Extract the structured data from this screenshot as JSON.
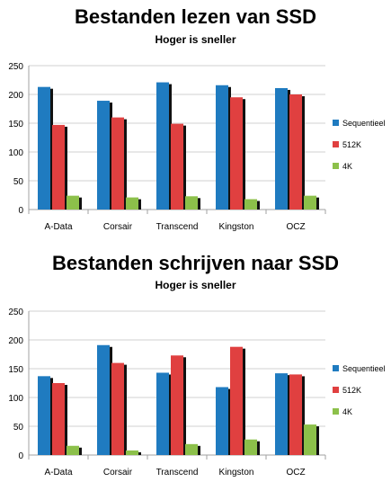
{
  "chart_data": [
    {
      "type": "bar",
      "title": "Bestanden lezen van SSD",
      "subtitle": "Hoger is sneller",
      "categories": [
        "A-Data",
        "Corsair",
        "Transcend",
        "Kingston",
        "OCZ"
      ],
      "series": [
        {
          "name": "Sequentieel",
          "color": "#1f7bc0",
          "values": [
            213,
            189,
            221,
            216,
            211
          ]
        },
        {
          "name": "512K",
          "color": "#e04040",
          "values": [
            147,
            160,
            149,
            195,
            200
          ]
        },
        {
          "name": "4K",
          "color": "#8cc04a",
          "values": [
            24,
            21,
            23,
            18,
            24
          ]
        }
      ],
      "ylim": [
        0,
        250
      ],
      "yticks": [
        "0",
        "50",
        "100",
        "150",
        "200",
        "250"
      ],
      "grid": true,
      "legend": "right"
    },
    {
      "type": "bar",
      "title": "Bestanden schrijven naar SSD",
      "subtitle": "Hoger is sneller",
      "categories": [
        "A-Data",
        "Corsair",
        "Transcend",
        "Kingston",
        "OCZ"
      ],
      "series": [
        {
          "name": "Sequentieel",
          "color": "#1f7bc0",
          "values": [
            137,
            191,
            143,
            118,
            142
          ]
        },
        {
          "name": "512K",
          "color": "#e04040",
          "values": [
            125,
            160,
            173,
            188,
            140
          ]
        },
        {
          "name": "4K",
          "color": "#8cc04a",
          "values": [
            16,
            8,
            19,
            27,
            53
          ]
        }
      ],
      "ylim": [
        0,
        250
      ],
      "yticks": [
        "0",
        "50",
        "100",
        "150",
        "200",
        "250"
      ],
      "grid": true,
      "legend": "right"
    }
  ]
}
